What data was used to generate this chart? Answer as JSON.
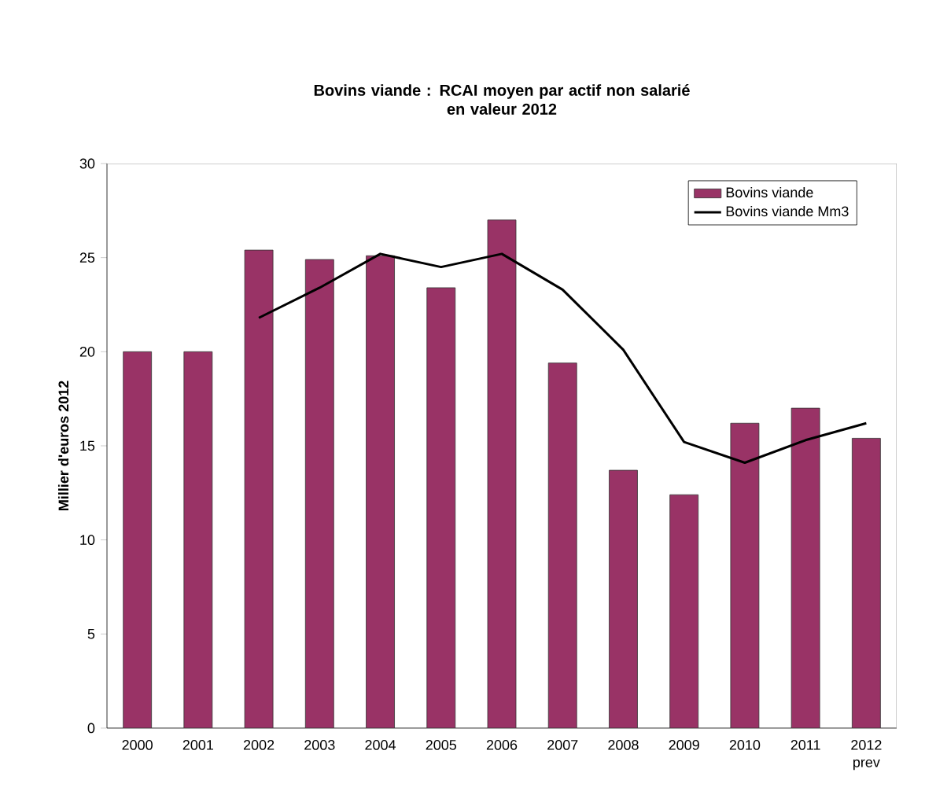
{
  "chart_data": {
    "type": "bar",
    "title": "Bovins viande : RCAI moyen par actif non salarié\nen valeur 2012",
    "ylabel": "Millier d'euros 2012",
    "categories": [
      "2000",
      "2001",
      "2002",
      "2003",
      "2004",
      "2005",
      "2006",
      "2007",
      "2008",
      "2009",
      "2010",
      "2011",
      "2012 prev"
    ],
    "series": [
      {
        "name": "Bovins viande",
        "color": "#993366",
        "values": [
          20.0,
          20.0,
          25.4,
          24.9,
          25.1,
          23.4,
          27.0,
          19.4,
          13.7,
          12.4,
          16.2,
          17.0,
          15.4
        ]
      },
      {
        "name": "Bovins viande Mm3",
        "type": "line",
        "color": "#000000",
        "values": [
          null,
          null,
          21.8,
          23.4,
          25.2,
          24.5,
          25.2,
          23.3,
          20.1,
          15.2,
          14.1,
          15.3,
          16.2
        ]
      }
    ],
    "ylim": [
      0,
      30
    ],
    "yticks": [
      0,
      5,
      10,
      15,
      20,
      25,
      30
    ],
    "legend": "top right",
    "grid": false
  }
}
